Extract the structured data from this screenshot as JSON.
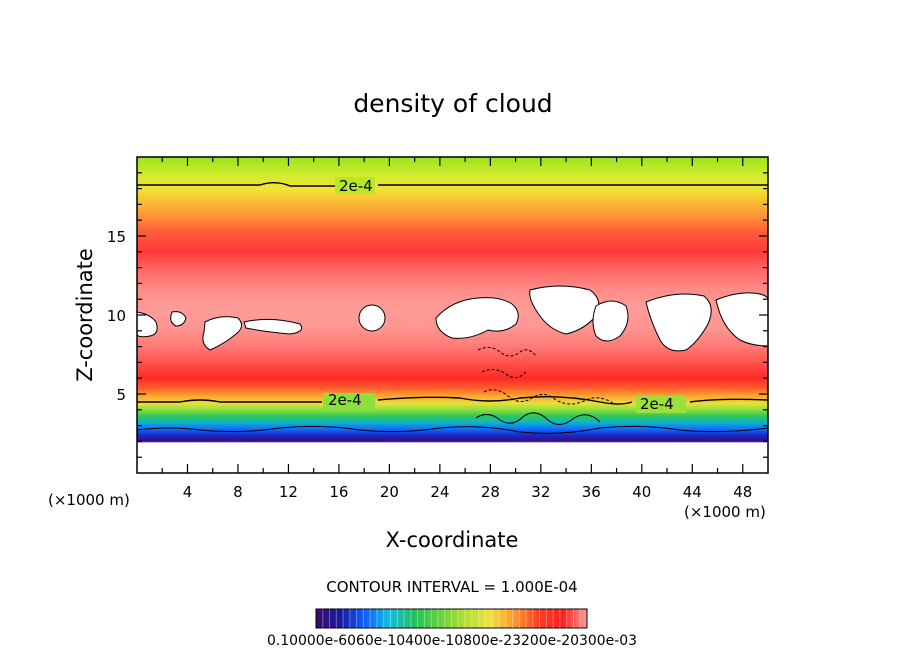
{
  "chart_data": {
    "type": "heatmap",
    "title": "density of cloud",
    "xlabel": "X-coordinate",
    "ylabel": "Z-coordinate",
    "x_unit_left": "(×1000 m)",
    "x_unit_right": "(×1000 m)",
    "x_ticks": [
      "4",
      "8",
      "12",
      "16",
      "20",
      "24",
      "28",
      "32",
      "36",
      "40",
      "44",
      "48"
    ],
    "y_ticks": [
      "5",
      "10",
      "15"
    ],
    "xlim": [
      0,
      50
    ],
    "ylim": [
      0,
      20
    ],
    "contour_interval_text": "CONTOUR INTERVAL = 1.000E-04",
    "contour_labels": [
      {
        "text": "2e-4",
        "x": 17.5,
        "z": 18.2
      },
      {
        "text": "2e-4",
        "x": 17.0,
        "z": 4.6
      },
      {
        "text": "2e-4",
        "x": 41.5,
        "z": 4.4
      }
    ],
    "colorbar": {
      "min": 0.0001,
      "max": 0.0003,
      "tick_text": "0.10000e-6060e-10400e-10800e-23200e-20300e-03",
      "colors": [
        "#3a0a6a",
        "#1a1aa0",
        "#1060ff",
        "#10c0e0",
        "#20c060",
        "#60d040",
        "#b0e030",
        "#f0e040",
        "#ff9a30",
        "#ff4020",
        "#ff2020",
        "#ff9a9a"
      ]
    },
    "density_profile": [
      {
        "z": 1.5,
        "density": 2e-05
      },
      {
        "z": 2.2,
        "density": 6e-05
      },
      {
        "z": 3.0,
        "density": 0.00011
      },
      {
        "z": 3.8,
        "density": 0.00016
      },
      {
        "z": 4.6,
        "density": 0.0002
      },
      {
        "z": 5.5,
        "density": 0.00026
      },
      {
        "z": 6.5,
        "density": 0.0003
      },
      {
        "z": 8.0,
        "density": 0.00031
      },
      {
        "z": 10.0,
        "density": 0.00032
      },
      {
        "z": 13.5,
        "density": 0.00029
      },
      {
        "z": 16.0,
        "density": 0.00026
      },
      {
        "z": 18.2,
        "density": 0.0002
      },
      {
        "z": 20.0,
        "density": 0.00016
      }
    ],
    "cloud_free_regions": [
      {
        "x": 1.0,
        "z": 10.0
      },
      {
        "x": 7.5,
        "z": 9.5
      },
      {
        "x": 11.0,
        "z": 9.4
      },
      {
        "x": 18.8,
        "z": 10.0
      },
      {
        "x": 26.0,
        "z": 9.6
      },
      {
        "x": 32.5,
        "z": 10.0
      },
      {
        "x": 41.5,
        "z": 10.1
      },
      {
        "x": 47.5,
        "z": 9.6
      }
    ]
  }
}
